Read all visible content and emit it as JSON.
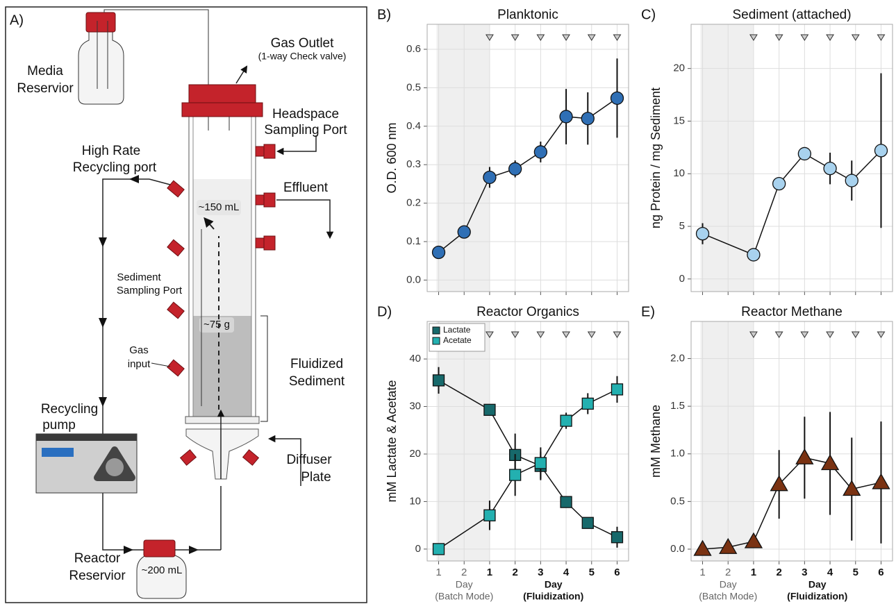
{
  "diagram": {
    "panel_label": "A)",
    "labels": {
      "media_reservoir": [
        "Media",
        "Reservior"
      ],
      "gas_outlet": "Gas Outlet",
      "check_valve": "(1-way Check valve)",
      "headspace": [
        "Headspace",
        "Sampling Port"
      ],
      "recycling_port": [
        "High Rate",
        "Recycling port"
      ],
      "effluent": "Effluent",
      "volume_liquid": "~150 mL",
      "sediment_port": [
        "Sediment",
        "Sampling Port"
      ],
      "sediment_mass": "~75 g",
      "gas_input": [
        "Gas",
        "input"
      ],
      "fluidized": [
        "Fluidized",
        "Sediment"
      ],
      "pump": [
        "Recycling",
        "pump"
      ],
      "diffuser": [
        "Diffuser",
        "Plate"
      ],
      "reactor_reservoir": [
        "Reactor",
        "Reservior"
      ],
      "volume_reservoir": "~200 mL"
    }
  },
  "chart_data": [
    {
      "type": "line",
      "panel_label": "B)",
      "title": "Planktonic",
      "ylabel": "O.D. 600 nm",
      "xlim": [
        0.55,
        8.45
      ],
      "ylim": [
        -0.03,
        0.665
      ],
      "grid": true,
      "xtick_labels": false,
      "xticks": [
        1,
        2,
        3,
        4,
        5,
        6,
        7,
        8
      ],
      "yticks": [
        {
          "value": 0,
          "label": "0.0"
        },
        0.1,
        0.2,
        0.3,
        0.4,
        0.5,
        0.6
      ],
      "series": [
        {
          "color": "#2f6fb5",
          "marker": "circle",
          "x": [
            1,
            2,
            3,
            4,
            5,
            6,
            6.85,
            8
          ],
          "values": [
            0.072,
            0.125,
            0.267,
            0.289,
            0.333,
            0.425,
            0.42,
            0.473
          ],
          "errors": [
            null,
            null,
            0.027,
            0.022,
            0.027,
            0.072,
            0.068,
            0.103
          ]
        }
      ]
    },
    {
      "type": "line",
      "panel_label": "C)",
      "title": "Sediment (attached)",
      "ylabel": "ng Protein / mg Sediment",
      "xlim": [
        0.55,
        8.45
      ],
      "ylim": [
        -1.2,
        24.2
      ],
      "grid": true,
      "xtick_labels": false,
      "xticks": [
        1,
        2,
        3,
        4,
        5,
        6,
        7,
        8
      ],
      "yticks": [
        0,
        5,
        10,
        15,
        20
      ],
      "series": [
        {
          "color": "#a8d2ee",
          "marker": "circle",
          "x": [
            1,
            3,
            4,
            5,
            6,
            6.85,
            8
          ],
          "values": [
            4.3,
            2.3,
            9.05,
            11.9,
            10.5,
            9.35,
            12.2
          ],
          "errors": [
            1.0,
            null,
            null,
            null,
            1.5,
            1.9,
            7.35
          ]
        }
      ]
    },
    {
      "type": "line",
      "panel_label": "D)",
      "title": "Reactor Organics",
      "ylabel": "mM Lactate & Acetate",
      "xlim": [
        0.55,
        8.45
      ],
      "ylim": [
        -2.5,
        47.9
      ],
      "grid": true,
      "xtick_labels": true,
      "legend": "top-left",
      "xticks": [
        1,
        2,
        {
          "value": 3,
          "label": "1"
        },
        {
          "value": 4,
          "label": "2"
        },
        {
          "value": 5,
          "label": "3"
        },
        {
          "value": 6,
          "label": "4"
        },
        {
          "value": 7,
          "label": "5"
        },
        {
          "value": 8,
          "label": "6"
        }
      ],
      "yticks": [
        0,
        10,
        20,
        30,
        40
      ],
      "x_groups": [
        {
          "label": "Day",
          "sublabel": "(Batch Mode)"
        },
        {
          "label": "Day",
          "sublabel": "(Fluidization)"
        }
      ],
      "series": [
        {
          "name": "Lactate",
          "color": "#17696b",
          "marker": "square",
          "x": [
            1,
            3,
            4,
            5,
            6,
            6.85,
            8
          ],
          "values": [
            35.5,
            29.3,
            19.8,
            17.5,
            9.9,
            5.5,
            2.5
          ],
          "errors": [
            2.8,
            null,
            4.5,
            3.0,
            null,
            null,
            2.2
          ]
        },
        {
          "name": "Acetate",
          "color": "#23b0b0",
          "marker": "square",
          "x": [
            1,
            3,
            4,
            5,
            6,
            6.85,
            8
          ],
          "values": [
            0,
            7.1,
            15.6,
            18.1,
            27.0,
            30.6,
            33.6
          ],
          "errors": [
            null,
            3.1,
            4.4,
            3.3,
            1.7,
            2.2,
            2.8
          ]
        }
      ]
    },
    {
      "type": "line",
      "panel_label": "E)",
      "title": "Reactor Methane",
      "ylabel": "mM Methane",
      "xlim": [
        0.55,
        8.45
      ],
      "ylim": [
        -0.124,
        2.39
      ],
      "grid": true,
      "xtick_labels": true,
      "xticks": [
        1,
        2,
        {
          "value": 3,
          "label": "1"
        },
        {
          "value": 4,
          "label": "2"
        },
        {
          "value": 5,
          "label": "3"
        },
        {
          "value": 6,
          "label": "4"
        },
        {
          "value": 7,
          "label": "5"
        },
        {
          "value": 8,
          "label": "6"
        }
      ],
      "yticks": [
        {
          "value": 0,
          "label": "0.0"
        },
        0.5,
        {
          "value": 1,
          "label": "1.0"
        },
        1.5,
        {
          "value": 2,
          "label": "2.0"
        }
      ],
      "x_groups": [
        {
          "label": "Day",
          "sublabel": "(Batch Mode)"
        },
        {
          "label": "Day",
          "sublabel": "(Fluidization)"
        }
      ],
      "series": [
        {
          "color": "#7a3212",
          "marker": "triangle",
          "x": [
            1,
            2,
            3,
            4,
            5,
            6,
            6.85,
            8
          ],
          "values": [
            0.0,
            0.02,
            0.08,
            0.68,
            0.96,
            0.9,
            0.63,
            0.7
          ],
          "errors": [
            null,
            null,
            null,
            0.36,
            0.43,
            0.54,
            0.54,
            0.64
          ]
        }
      ]
    }
  ]
}
